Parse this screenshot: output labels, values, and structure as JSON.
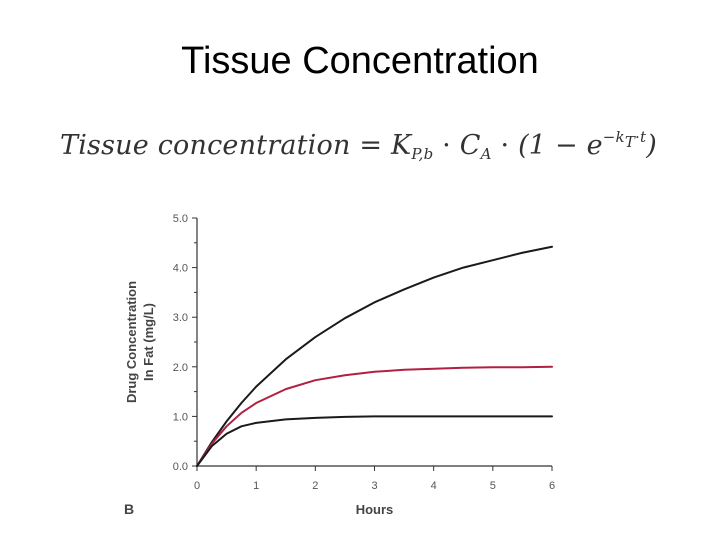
{
  "slide": {
    "title": "Tissue Concentration"
  },
  "equation": {
    "lhs": "Tissue concentration",
    "equals": "=",
    "k": "K",
    "k_sub": "P,b",
    "dot1": "·",
    "c": "C",
    "c_sub": "A",
    "dot2": "·",
    "paren_open": "(1 −",
    "e": "e",
    "exp_k": "−k",
    "exp_sub": "T",
    "exp_dot": "·",
    "exp_t": "t",
    "paren_close": ")"
  },
  "chart_data": {
    "type": "line",
    "panel_label": "B",
    "xlabel": "Hours",
    "ylabel_line1": "Drug Concentration",
    "ylabel_line2": "In Fat (mg/L)",
    "xlim": [
      0,
      6
    ],
    "ylim": [
      0,
      5
    ],
    "xticks": [
      "0",
      "1",
      "2",
      "3",
      "4",
      "5",
      "6"
    ],
    "yticks": [
      "0.0",
      "1.0",
      "2.0",
      "3.0",
      "4.0",
      "5.0"
    ],
    "grid": false,
    "series": [
      {
        "color": "#1a1a1a",
        "x": [
          0,
          0.25,
          0.5,
          0.75,
          1,
          1.5,
          2,
          2.5,
          3,
          3.5,
          4,
          4.5,
          5,
          5.5,
          6
        ],
        "y": [
          0,
          0.48,
          0.9,
          1.27,
          1.6,
          2.15,
          2.6,
          2.98,
          3.3,
          3.56,
          3.8,
          4.0,
          4.15,
          4.3,
          4.42
        ]
      },
      {
        "color": "#b02040",
        "x": [
          0,
          0.25,
          0.5,
          0.75,
          1,
          1.5,
          2,
          2.5,
          3,
          3.5,
          4,
          4.5,
          5,
          5.5,
          6
        ],
        "y": [
          0,
          0.45,
          0.8,
          1.07,
          1.27,
          1.55,
          1.73,
          1.83,
          1.9,
          1.94,
          1.96,
          1.98,
          1.99,
          1.99,
          2.0
        ]
      },
      {
        "color": "#1a1a1a",
        "x": [
          0,
          0.25,
          0.5,
          0.75,
          1,
          1.5,
          2,
          2.5,
          3,
          3.5,
          4,
          4.5,
          5,
          5.5,
          6
        ],
        "y": [
          0,
          0.4,
          0.65,
          0.8,
          0.87,
          0.94,
          0.97,
          0.99,
          1.0,
          1.0,
          1.0,
          1.0,
          1.0,
          1.0,
          1.0
        ]
      }
    ]
  }
}
